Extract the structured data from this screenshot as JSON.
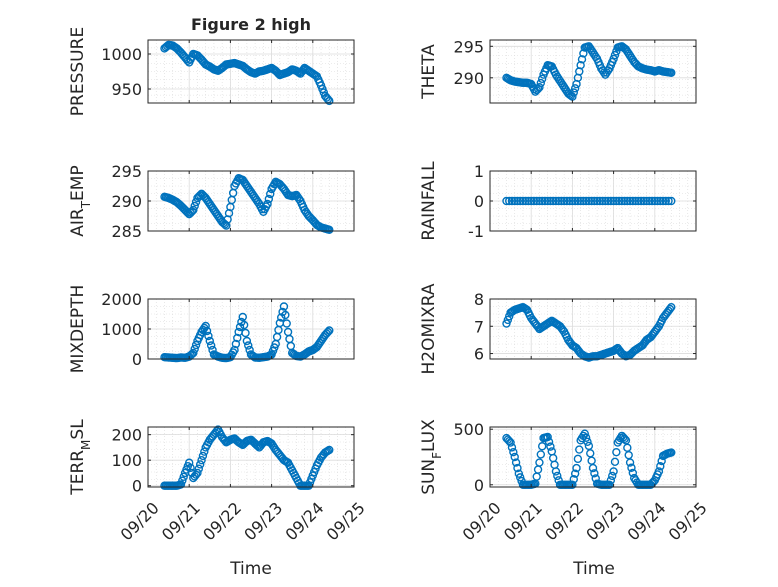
{
  "figure": {
    "title": "Figure 2 high",
    "xlabel_left": "Time",
    "xlabel_right": "Time",
    "x_tick_labels": [
      "09/20",
      "09/21",
      "09/22",
      "09/23",
      "09/24",
      "09/25"
    ],
    "marker_color": "#0072BD"
  },
  "chart_data": [
    {
      "type": "scatter",
      "ylabel": "PRESSURE",
      "ylim": [
        930,
        1020
      ],
      "yticks": [
        950,
        1000
      ],
      "xlim": [
        "09/20",
        "09/25"
      ],
      "grid": true,
      "series": [
        {
          "x": [
            0.4,
            0.5,
            0.6,
            0.7,
            0.8,
            0.9,
            1.0,
            1.1,
            1.2,
            1.3,
            1.4,
            1.5,
            1.6,
            1.7,
            1.8,
            1.9,
            2.0,
            2.1,
            2.2,
            2.3,
            2.4,
            2.5,
            2.6,
            2.7,
            2.8,
            2.9,
            3.0,
            3.1,
            3.2,
            3.3,
            3.4,
            3.5,
            3.6,
            3.7,
            3.8,
            3.9,
            4.0,
            4.1,
            4.2,
            4.3,
            4.4
          ],
          "y": [
            1008,
            1013,
            1012,
            1008,
            1002,
            995,
            988,
            1000,
            998,
            992,
            985,
            982,
            978,
            976,
            980,
            985,
            986,
            987,
            985,
            983,
            978,
            974,
            972,
            975,
            976,
            978,
            980,
            976,
            970,
            972,
            974,
            978,
            976,
            972,
            980,
            976,
            972,
            968,
            955,
            940,
            933
          ]
        }
      ]
    },
    {
      "type": "scatter",
      "ylabel": "THETA",
      "ylim": [
        286,
        296
      ],
      "yticks": [
        290,
        295
      ],
      "xlim": [
        "09/20",
        "09/25"
      ],
      "grid": true,
      "series": [
        {
          "x": [
            0.4,
            0.5,
            0.6,
            0.7,
            0.8,
            0.9,
            1.0,
            1.1,
            1.2,
            1.3,
            1.4,
            1.5,
            1.6,
            1.7,
            1.8,
            1.9,
            2.0,
            2.1,
            2.2,
            2.3,
            2.4,
            2.5,
            2.6,
            2.7,
            2.8,
            2.9,
            3.0,
            3.1,
            3.2,
            3.3,
            3.4,
            3.5,
            3.6,
            3.7,
            3.8,
            3.9,
            4.0,
            4.1,
            4.2,
            4.3,
            4.4
          ],
          "y": [
            290,
            289.6,
            289.4,
            289.3,
            289.2,
            289.2,
            289.0,
            287.8,
            288.5,
            290.5,
            292,
            291.8,
            290.5,
            289.5,
            288.5,
            287.5,
            287,
            289,
            292,
            294.8,
            295,
            294,
            293,
            291.5,
            290.5,
            291.5,
            293,
            294.8,
            295,
            294.5,
            293.5,
            292.5,
            291.8,
            291.5,
            291.3,
            291.2,
            291,
            291.2,
            291,
            290.9,
            290.8
          ]
        }
      ]
    },
    {
      "type": "scatter",
      "ylabel": "AIR_TEMP",
      "ylim": [
        285,
        295
      ],
      "yticks": [
        285,
        290,
        295
      ],
      "xlim": [
        "09/20",
        "09/25"
      ],
      "grid": true,
      "series": [
        {
          "x": [
            0.4,
            0.5,
            0.6,
            0.7,
            0.8,
            0.9,
            1.0,
            1.1,
            1.2,
            1.3,
            1.4,
            1.5,
            1.6,
            1.7,
            1.8,
            1.9,
            2.0,
            2.1,
            2.2,
            2.3,
            2.4,
            2.5,
            2.6,
            2.7,
            2.8,
            2.9,
            3.0,
            3.1,
            3.2,
            3.3,
            3.4,
            3.5,
            3.6,
            3.7,
            3.8,
            3.9,
            4.0,
            4.1,
            4.2,
            4.3,
            4.4
          ],
          "y": [
            290.7,
            290.5,
            290.2,
            289.8,
            289.2,
            288.5,
            287.8,
            288.5,
            290.5,
            291.2,
            290.5,
            289.5,
            288.5,
            287.5,
            286.5,
            285.9,
            289,
            292.5,
            293.8,
            293.5,
            292.5,
            291.5,
            290.5,
            289.5,
            288.2,
            289.5,
            292,
            293.2,
            292.8,
            292,
            291,
            290.8,
            291,
            290,
            288.5,
            287.5,
            286.8,
            286,
            285.6,
            285.4,
            285.2
          ]
        }
      ]
    },
    {
      "type": "scatter",
      "ylabel": "RAINFALL",
      "ylim": [
        -1,
        1
      ],
      "yticks": [
        -1,
        0,
        1
      ],
      "xlim": [
        "09/20",
        "09/25"
      ],
      "grid": true,
      "series": [
        {
          "x": [
            0.4,
            0.6,
            0.8,
            1.0,
            1.2,
            1.4,
            1.6,
            1.8,
            2.0,
            2.2,
            2.4,
            2.6,
            2.8,
            3.0,
            3.2,
            3.4,
            3.6,
            3.8,
            4.0,
            4.2,
            4.4
          ],
          "y": [
            0,
            0,
            0,
            0,
            0,
            0,
            0,
            0,
            0,
            0,
            0,
            0,
            0,
            0,
            0,
            0,
            0,
            0,
            0,
            0,
            0
          ]
        }
      ]
    },
    {
      "type": "scatter",
      "ylabel": "MIXDEPTH",
      "ylim": [
        0,
        2000
      ],
      "yticks": [
        0,
        1000,
        2000
      ],
      "xlim": [
        "09/20",
        "09/25"
      ],
      "grid": true,
      "series": [
        {
          "x": [
            0.4,
            0.5,
            0.6,
            0.7,
            0.8,
            0.9,
            1.0,
            1.1,
            1.2,
            1.3,
            1.4,
            1.5,
            1.6,
            1.7,
            1.8,
            1.9,
            2.0,
            2.1,
            2.2,
            2.3,
            2.4,
            2.5,
            2.6,
            2.7,
            2.8,
            2.9,
            3.0,
            3.1,
            3.2,
            3.3,
            3.4,
            3.5,
            3.6,
            3.7,
            3.8,
            3.9,
            4.0,
            4.1,
            4.2,
            4.3,
            4.4
          ],
          "y": [
            60,
            50,
            40,
            30,
            50,
            40,
            80,
            200,
            600,
            900,
            1100,
            600,
            150,
            80,
            40,
            30,
            60,
            300,
            900,
            1400,
            600,
            150,
            50,
            40,
            60,
            80,
            150,
            500,
            1200,
            1750,
            900,
            200,
            100,
            80,
            150,
            250,
            300,
            400,
            600,
            800,
            950
          ]
        }
      ]
    },
    {
      "type": "scatter",
      "ylabel": "H2OMIXRA",
      "ylim": [
        5.8,
        8
      ],
      "yticks": [
        6,
        7,
        8
      ],
      "xlim": [
        "09/20",
        "09/25"
      ],
      "grid": true,
      "series": [
        {
          "x": [
            0.4,
            0.5,
            0.6,
            0.7,
            0.8,
            0.9,
            1.0,
            1.1,
            1.2,
            1.3,
            1.4,
            1.5,
            1.6,
            1.7,
            1.8,
            1.9,
            2.0,
            2.1,
            2.2,
            2.3,
            2.4,
            2.5,
            2.6,
            2.7,
            2.8,
            2.9,
            3.0,
            3.1,
            3.2,
            3.3,
            3.4,
            3.5,
            3.6,
            3.7,
            3.8,
            3.9,
            4.0,
            4.1,
            4.2,
            4.3,
            4.4
          ],
          "y": [
            7.1,
            7.5,
            7.6,
            7.65,
            7.7,
            7.6,
            7.3,
            7.1,
            6.9,
            7.0,
            7.1,
            7.2,
            7.1,
            7.0,
            6.8,
            6.5,
            6.3,
            6.2,
            6.0,
            5.9,
            5.85,
            5.9,
            5.9,
            5.95,
            6.0,
            6.05,
            6.1,
            6.2,
            6.0,
            5.9,
            5.95,
            6.1,
            6.2,
            6.3,
            6.5,
            6.6,
            6.8,
            7.0,
            7.3,
            7.5,
            7.7
          ]
        }
      ]
    },
    {
      "type": "scatter",
      "ylabel": "TERR_MSL",
      "ylim": [
        -5,
        230
      ],
      "yticks": [
        0,
        100,
        200
      ],
      "xlim": [
        "09/20",
        "09/25"
      ],
      "grid": true,
      "series": [
        {
          "x": [
            0.4,
            0.5,
            0.6,
            0.7,
            0.8,
            0.9,
            1.0,
            1.1,
            1.2,
            1.3,
            1.4,
            1.5,
            1.6,
            1.7,
            1.8,
            1.9,
            2.0,
            2.1,
            2.2,
            2.3,
            2.4,
            2.5,
            2.6,
            2.7,
            2.8,
            2.9,
            3.0,
            3.1,
            3.2,
            3.3,
            3.4,
            3.5,
            3.6,
            3.7,
            3.8,
            3.9,
            4.0,
            4.1,
            4.2,
            4.3,
            4.4
          ],
          "y": [
            0,
            0,
            0,
            0,
            5,
            50,
            90,
            30,
            50,
            100,
            150,
            180,
            200,
            220,
            190,
            170,
            180,
            185,
            170,
            160,
            175,
            180,
            165,
            150,
            170,
            175,
            165,
            140,
            120,
            100,
            90,
            60,
            30,
            0,
            0,
            0,
            40,
            80,
            110,
            130,
            140
          ]
        }
      ]
    },
    {
      "type": "scatter",
      "ylabel": "SUN_FLUX",
      "ylim": [
        -20,
        520
      ],
      "yticks": [
        0,
        500
      ],
      "xlim": [
        "09/20",
        "09/25"
      ],
      "grid": true,
      "series": [
        {
          "x": [
            0.4,
            0.5,
            0.6,
            0.7,
            0.8,
            0.9,
            1.0,
            1.1,
            1.2,
            1.3,
            1.4,
            1.5,
            1.6,
            1.7,
            1.8,
            1.9,
            2.0,
            2.1,
            2.2,
            2.3,
            2.4,
            2.5,
            2.6,
            2.7,
            2.8,
            2.9,
            3.0,
            3.1,
            3.2,
            3.3,
            3.4,
            3.5,
            3.6,
            3.7,
            3.8,
            3.9,
            4.0,
            4.1,
            4.2,
            4.3,
            4.4
          ],
          "y": [
            420,
            380,
            250,
            100,
            0,
            0,
            0,
            10,
            200,
            420,
            430,
            300,
            120,
            0,
            0,
            0,
            0,
            150,
            400,
            460,
            350,
            150,
            10,
            0,
            0,
            0,
            120,
            380,
            440,
            400,
            200,
            60,
            0,
            0,
            0,
            0,
            40,
            120,
            260,
            280,
            290
          ]
        }
      ]
    }
  ]
}
